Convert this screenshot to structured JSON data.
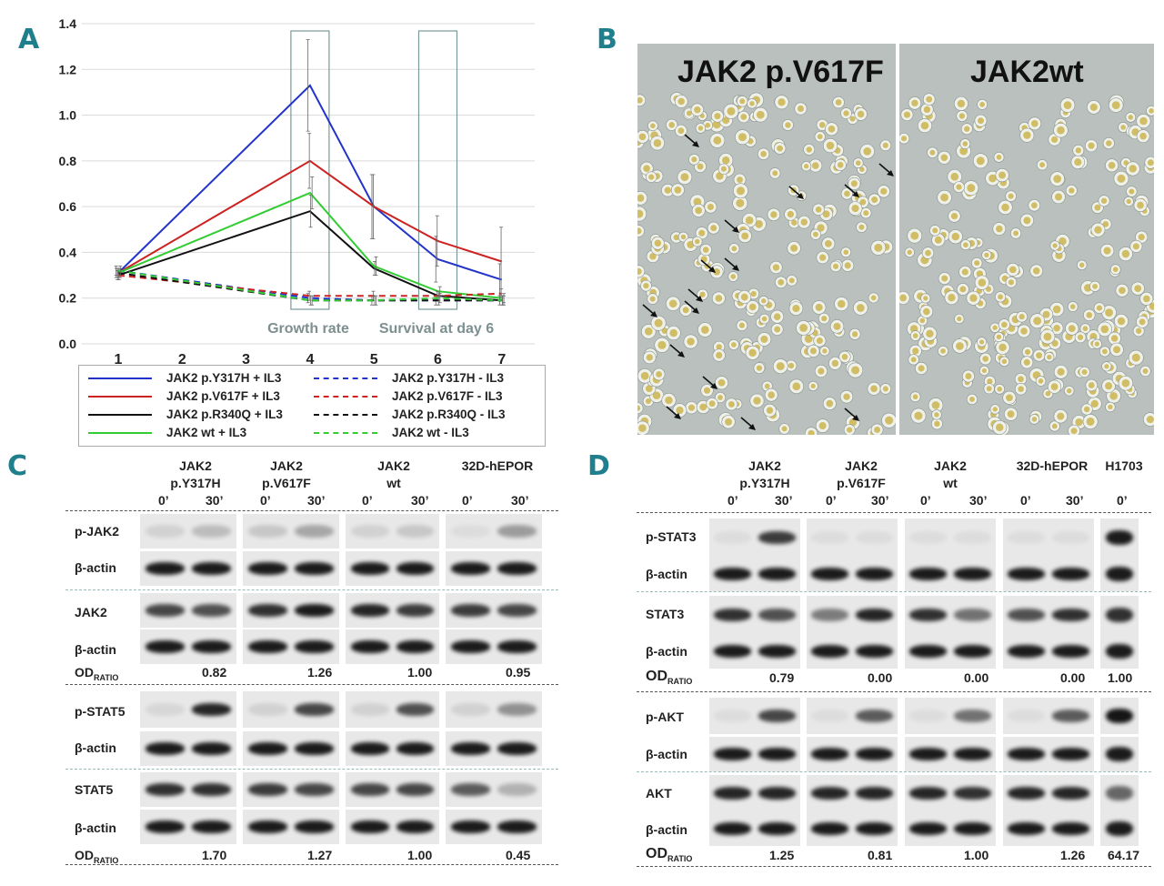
{
  "panels": {
    "a": "A",
    "b": "B",
    "c": "C",
    "d": "D"
  },
  "chart_data": {
    "type": "line",
    "x": [
      1,
      2,
      3,
      4,
      5,
      6,
      7
    ],
    "ylim": [
      0,
      1.4
    ],
    "yticks": [
      "0.0",
      "0.2",
      "0.4",
      "0.6",
      "0.8",
      "1.0",
      "1.2",
      "1.4"
    ],
    "xticks": [
      "1",
      "2",
      "3",
      "4",
      "5",
      "6",
      "7"
    ],
    "annotations": [
      "Growth rate",
      "Survival at day 6"
    ],
    "highlight_x": [
      4,
      6
    ],
    "series": [
      {
        "name": "JAK2 p.Y317H + IL3",
        "color": "#2233cc",
        "dash": false,
        "points": [
          [
            1,
            0.31
          ],
          [
            4,
            1.13
          ],
          [
            5,
            0.6
          ],
          [
            6,
            0.37
          ],
          [
            7,
            0.28
          ]
        ],
        "err": [
          0.02,
          0.2,
          0.14,
          0.1,
          0.07
        ]
      },
      {
        "name": "JAK2 p.V617F + IL3",
        "color": "#cc2222",
        "dash": false,
        "points": [
          [
            1,
            0.31
          ],
          [
            4,
            0.8
          ],
          [
            5,
            0.6
          ],
          [
            6,
            0.45
          ],
          [
            7,
            0.36
          ]
        ],
        "err": [
          0.02,
          0.12,
          0.14,
          0.11,
          0.15
        ]
      },
      {
        "name": "JAK2 p.R340Q + IL3",
        "color": "#111111",
        "dash": false,
        "points": [
          [
            1,
            0.3
          ],
          [
            4,
            0.58
          ],
          [
            5,
            0.33
          ],
          [
            6,
            0.21
          ],
          [
            7,
            0.19
          ]
        ],
        "err": [
          0.02,
          0.07,
          0.03,
          0.02,
          0.02
        ]
      },
      {
        "name": "JAK2 wt + IL3",
        "color": "#33cc33",
        "dash": false,
        "points": [
          [
            1,
            0.31
          ],
          [
            4,
            0.66
          ],
          [
            5,
            0.34
          ],
          [
            6,
            0.23
          ],
          [
            7,
            0.2
          ]
        ],
        "err": [
          0.02,
          0.07,
          0.04,
          0.02,
          0.02
        ]
      },
      {
        "name": "JAK2 p.Y317H - IL3",
        "color": "#2233cc",
        "dash": true,
        "points": [
          [
            1,
            0.32
          ],
          [
            4,
            0.2
          ],
          [
            5,
            0.19
          ],
          [
            6,
            0.19
          ],
          [
            7,
            0.19
          ]
        ],
        "err": [
          0.02,
          0.02,
          0.02,
          0.02,
          0.02
        ]
      },
      {
        "name": "JAK2 p.V617F - IL3",
        "color": "#cc2222",
        "dash": true,
        "points": [
          [
            1,
            0.3
          ],
          [
            4,
            0.21
          ],
          [
            5,
            0.21
          ],
          [
            6,
            0.21
          ],
          [
            7,
            0.22
          ]
        ],
        "err": [
          0.02,
          0.02,
          0.02,
          0.02,
          0.02
        ]
      },
      {
        "name": "JAK2 p.R340Q - IL3",
        "color": "#111111",
        "dash": true,
        "points": [
          [
            1,
            0.31
          ],
          [
            4,
            0.19
          ],
          [
            5,
            0.19
          ],
          [
            6,
            0.19
          ],
          [
            7,
            0.19
          ]
        ],
        "err": [
          0.02,
          0.02,
          0.02,
          0.02,
          0.02
        ]
      },
      {
        "name": "JAK2 wt - IL3",
        "color": "#33cc33",
        "dash": true,
        "points": [
          [
            1,
            0.32
          ],
          [
            4,
            0.19
          ],
          [
            5,
            0.19
          ],
          [
            6,
            0.2
          ],
          [
            7,
            0.19
          ]
        ],
        "err": [
          0.02,
          0.02,
          0.02,
          0.02,
          0.02
        ]
      }
    ]
  },
  "micrograph": {
    "left_title": "JAK2 p.V617F",
    "right_title": "JAK2wt"
  },
  "panel_c": {
    "groups": [
      {
        "line1": "JAK2",
        "line2": "p.Y317H"
      },
      {
        "line1": "JAK2",
        "line2": "p.V617F"
      },
      {
        "line1": "JAK2",
        "line2": "wt"
      },
      {
        "line1": "",
        "line2": "32D-hEPOR"
      }
    ],
    "time_a": "0’",
    "time_b": "30’",
    "rows": [
      "p-JAK2",
      "β-actin",
      "JAK2",
      "β-actin",
      "p-STAT5",
      "β-actin",
      "STAT5",
      "β-actin"
    ],
    "od_label": "OD",
    "od_sub": "RATIO",
    "od_top": [
      "0.82",
      "1.26",
      "1.00",
      "0.95"
    ],
    "od_bottom": [
      "1.70",
      "1.27",
      "1.00",
      "0.45"
    ]
  },
  "panel_d": {
    "groups": [
      {
        "line1": "JAK2",
        "line2": "p.Y317H"
      },
      {
        "line1": "JAK2",
        "line2": "p.V617F"
      },
      {
        "line1": "JAK2",
        "line2": "wt"
      },
      {
        "line1": "",
        "line2": "32D-hEPOR"
      },
      {
        "line1": "",
        "line2": "H1703"
      }
    ],
    "time_a": "0’",
    "time_b": "30’",
    "rows": [
      "p-STAT3",
      "β-actin",
      "STAT3",
      "β-actin",
      "p-AKT",
      "β-actin",
      "AKT",
      "β-actin"
    ],
    "od_label": "OD",
    "od_sub": "RATIO",
    "od_top": [
      "0.79",
      "0.00",
      "0.00",
      "0.00",
      "1.00"
    ],
    "od_bottom": [
      "1.25",
      "0.81",
      "1.00",
      "1.26",
      "64.17"
    ]
  }
}
